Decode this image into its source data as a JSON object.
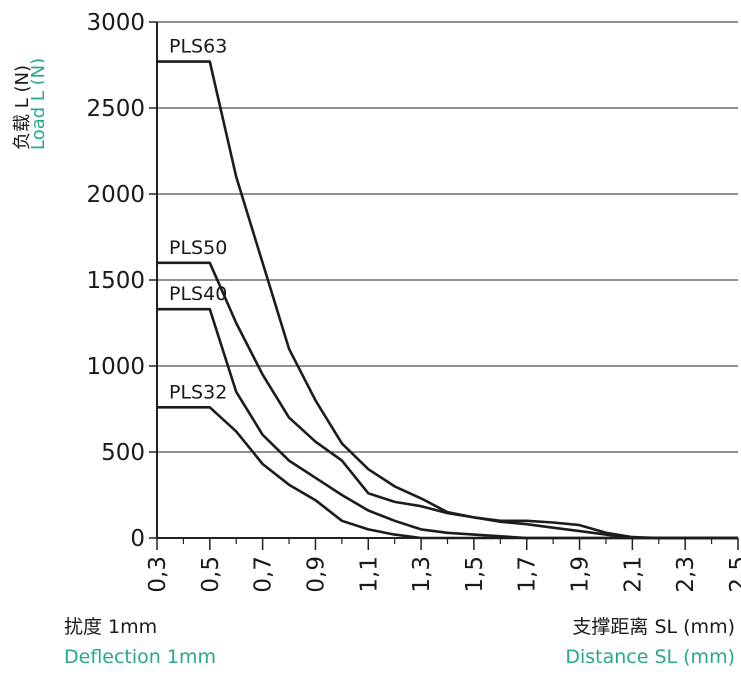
{
  "chart_data": {
    "type": "line",
    "y_label_cn": "负载 L (N)",
    "y_label_en": "Load L (N)",
    "x_label_cn": "支撑距离 SL (mm)",
    "x_label_en": "Distance SL (mm)",
    "note_cn": "扰度 1mm",
    "note_en": "Deflection 1mm",
    "xlim": [
      0.3,
      2.5
    ],
    "ylim": [
      0,
      3000
    ],
    "x_ticks": [
      "0,3",
      "0,5",
      "0,7",
      "0,9",
      "1,1",
      "1,3",
      "1,5",
      "1,7",
      "1,9",
      "2,1",
      "2,3",
      "2,5"
    ],
    "y_ticks": [
      0,
      500,
      1000,
      1500,
      2000,
      2500,
      3000
    ],
    "grid": true,
    "series": [
      {
        "name": "PLS63",
        "points": [
          [
            0.3,
            2770
          ],
          [
            0.5,
            2770
          ],
          [
            0.6,
            2100
          ],
          [
            0.7,
            1600
          ],
          [
            0.8,
            1100
          ],
          [
            0.9,
            800
          ],
          [
            1.0,
            550
          ],
          [
            1.1,
            400
          ],
          [
            1.2,
            300
          ],
          [
            1.3,
            230
          ],
          [
            1.4,
            150
          ],
          [
            1.5,
            120
          ],
          [
            1.6,
            100
          ],
          [
            1.7,
            100
          ],
          [
            1.8,
            90
          ],
          [
            1.9,
            75
          ],
          [
            2.0,
            30
          ],
          [
            2.1,
            5
          ],
          [
            2.2,
            0
          ],
          [
            2.5,
            0
          ]
        ]
      },
      {
        "name": "PLS50",
        "points": [
          [
            0.3,
            1600
          ],
          [
            0.5,
            1600
          ],
          [
            0.6,
            1250
          ],
          [
            0.7,
            950
          ],
          [
            0.8,
            700
          ],
          [
            0.9,
            560
          ],
          [
            1.0,
            450
          ],
          [
            1.1,
            260
          ],
          [
            1.2,
            210
          ],
          [
            1.3,
            185
          ],
          [
            1.4,
            145
          ],
          [
            1.5,
            120
          ],
          [
            1.6,
            95
          ],
          [
            1.7,
            80
          ],
          [
            1.8,
            60
          ],
          [
            1.9,
            40
          ],
          [
            2.0,
            20
          ],
          [
            2.1,
            0
          ],
          [
            2.5,
            0
          ]
        ]
      },
      {
        "name": "PLS40",
        "points": [
          [
            0.3,
            1330
          ],
          [
            0.5,
            1330
          ],
          [
            0.6,
            850
          ],
          [
            0.7,
            600
          ],
          [
            0.8,
            450
          ],
          [
            0.9,
            350
          ],
          [
            1.0,
            250
          ],
          [
            1.1,
            160
          ],
          [
            1.2,
            100
          ],
          [
            1.3,
            50
          ],
          [
            1.4,
            30
          ],
          [
            1.5,
            20
          ],
          [
            1.6,
            10
          ],
          [
            1.7,
            0
          ],
          [
            2.5,
            0
          ]
        ]
      },
      {
        "name": "PLS32",
        "points": [
          [
            0.3,
            760
          ],
          [
            0.5,
            760
          ],
          [
            0.6,
            620
          ],
          [
            0.7,
            430
          ],
          [
            0.8,
            310
          ],
          [
            0.9,
            220
          ],
          [
            1.0,
            100
          ],
          [
            1.1,
            50
          ],
          [
            1.2,
            20
          ],
          [
            1.3,
            0
          ],
          [
            2.5,
            0
          ]
        ]
      }
    ]
  }
}
